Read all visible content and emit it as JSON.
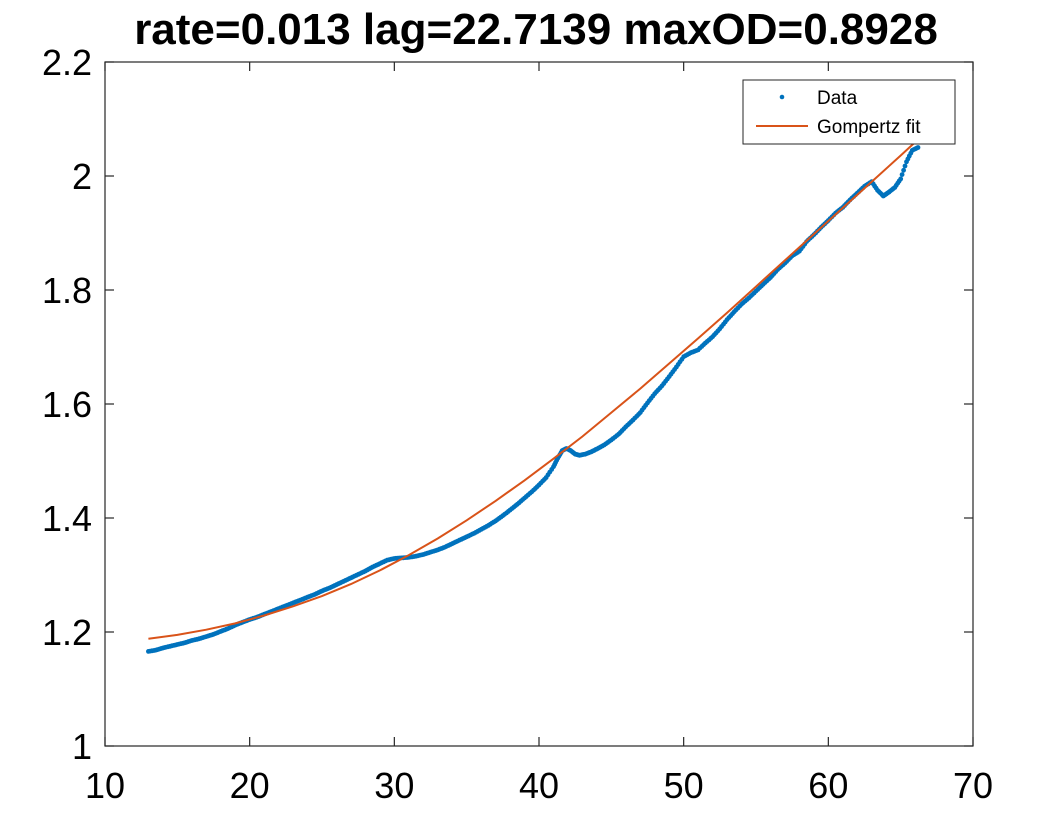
{
  "chart_data": {
    "type": "scatter",
    "title": "rate=0.013 lag=22.7139 maxOD=0.8928",
    "xlabel": "",
    "ylabel": "",
    "xlim": [
      10,
      70
    ],
    "ylim": [
      1,
      2.2
    ],
    "x_ticks": [
      "10",
      "20",
      "30",
      "40",
      "50",
      "60",
      "70"
    ],
    "y_ticks": [
      "1",
      "1.2",
      "1.4",
      "1.6",
      "1.8",
      "2",
      "2.2"
    ],
    "legend": {
      "placement": "top-right"
    },
    "grid": false,
    "series": [
      {
        "name": "Data",
        "kind": "scatter",
        "color": "#0072BD",
        "points": [
          [
            13.0,
            1.166
          ],
          [
            13.5,
            1.168
          ],
          [
            14.0,
            1.172
          ],
          [
            14.5,
            1.175
          ],
          [
            15.0,
            1.178
          ],
          [
            15.5,
            1.181
          ],
          [
            16.0,
            1.185
          ],
          [
            16.5,
            1.188
          ],
          [
            17.0,
            1.192
          ],
          [
            17.5,
            1.196
          ],
          [
            18.0,
            1.201
          ],
          [
            18.5,
            1.206
          ],
          [
            19.0,
            1.212
          ],
          [
            19.5,
            1.217
          ],
          [
            20.0,
            1.222
          ],
          [
            20.5,
            1.226
          ],
          [
            21.0,
            1.231
          ],
          [
            21.5,
            1.236
          ],
          [
            22.0,
            1.241
          ],
          [
            22.5,
            1.246
          ],
          [
            23.0,
            1.251
          ],
          [
            23.5,
            1.256
          ],
          [
            24.0,
            1.261
          ],
          [
            24.5,
            1.266
          ],
          [
            25.0,
            1.272
          ],
          [
            25.5,
            1.277
          ],
          [
            26.0,
            1.283
          ],
          [
            26.5,
            1.289
          ],
          [
            27.0,
            1.295
          ],
          [
            27.5,
            1.301
          ],
          [
            28.0,
            1.307
          ],
          [
            28.5,
            1.314
          ],
          [
            29.0,
            1.32
          ],
          [
            29.5,
            1.326
          ],
          [
            30.0,
            1.329
          ],
          [
            30.5,
            1.33
          ],
          [
            31.0,
            1.331
          ],
          [
            31.5,
            1.333
          ],
          [
            32.0,
            1.336
          ],
          [
            32.5,
            1.34
          ],
          [
            33.0,
            1.344
          ],
          [
            33.5,
            1.349
          ],
          [
            34.0,
            1.355
          ],
          [
            34.5,
            1.361
          ],
          [
            35.0,
            1.367
          ],
          [
            35.5,
            1.373
          ],
          [
            36.0,
            1.38
          ],
          [
            36.5,
            1.387
          ],
          [
            37.0,
            1.395
          ],
          [
            37.5,
            1.404
          ],
          [
            38.0,
            1.414
          ],
          [
            38.5,
            1.424
          ],
          [
            39.0,
            1.435
          ],
          [
            39.5,
            1.446
          ],
          [
            40.0,
            1.458
          ],
          [
            40.5,
            1.471
          ],
          [
            41.0,
            1.49
          ],
          [
            41.3,
            1.505
          ],
          [
            41.6,
            1.518
          ],
          [
            41.9,
            1.522
          ],
          [
            42.2,
            1.518
          ],
          [
            42.5,
            1.512
          ],
          [
            42.8,
            1.51
          ],
          [
            43.2,
            1.512
          ],
          [
            43.6,
            1.516
          ],
          [
            44.0,
            1.521
          ],
          [
            44.5,
            1.528
          ],
          [
            45.0,
            1.537
          ],
          [
            45.5,
            1.547
          ],
          [
            46.0,
            1.56
          ],
          [
            46.5,
            1.572
          ],
          [
            47.0,
            1.585
          ],
          [
            47.5,
            1.602
          ],
          [
            48.0,
            1.618
          ],
          [
            48.5,
            1.632
          ],
          [
            49.0,
            1.648
          ],
          [
            49.5,
            1.665
          ],
          [
            50.0,
            1.683
          ],
          [
            50.5,
            1.69
          ],
          [
            51.0,
            1.695
          ],
          [
            51.5,
            1.707
          ],
          [
            52.0,
            1.718
          ],
          [
            52.5,
            1.732
          ],
          [
            53.0,
            1.748
          ],
          [
            53.5,
            1.762
          ],
          [
            54.0,
            1.775
          ],
          [
            54.5,
            1.786
          ],
          [
            55.0,
            1.798
          ],
          [
            55.5,
            1.81
          ],
          [
            56.0,
            1.822
          ],
          [
            56.5,
            1.836
          ],
          [
            57.0,
            1.847
          ],
          [
            57.5,
            1.86
          ],
          [
            58.0,
            1.868
          ],
          [
            58.5,
            1.885
          ],
          [
            59.0,
            1.897
          ],
          [
            59.5,
            1.91
          ],
          [
            60.0,
            1.922
          ],
          [
            60.5,
            1.935
          ],
          [
            61.0,
            1.945
          ],
          [
            61.5,
            1.958
          ],
          [
            62.0,
            1.97
          ],
          [
            62.5,
            1.982
          ],
          [
            63.0,
            1.99
          ],
          [
            63.4,
            1.975
          ],
          [
            63.8,
            1.965
          ],
          [
            64.2,
            1.972
          ],
          [
            64.6,
            1.98
          ],
          [
            65.0,
            1.995
          ],
          [
            65.4,
            2.025
          ],
          [
            65.8,
            2.045
          ],
          [
            66.2,
            2.05
          ]
        ]
      },
      {
        "name": "Gompertz fit",
        "kind": "line",
        "color": "#D95319",
        "points": [
          [
            13.0,
            1.188
          ],
          [
            15.0,
            1.195
          ],
          [
            17.0,
            1.204
          ],
          [
            19.0,
            1.215
          ],
          [
            21.0,
            1.229
          ],
          [
            23.0,
            1.245
          ],
          [
            25.0,
            1.263
          ],
          [
            27.0,
            1.284
          ],
          [
            29.0,
            1.308
          ],
          [
            31.0,
            1.335
          ],
          [
            33.0,
            1.364
          ],
          [
            35.0,
            1.396
          ],
          [
            37.0,
            1.43
          ],
          [
            39.0,
            1.466
          ],
          [
            41.0,
            1.504
          ],
          [
            43.0,
            1.543
          ],
          [
            45.0,
            1.585
          ],
          [
            47.0,
            1.627
          ],
          [
            49.0,
            1.671
          ],
          [
            51.0,
            1.715
          ],
          [
            53.0,
            1.76
          ],
          [
            55.0,
            1.806
          ],
          [
            57.0,
            1.852
          ],
          [
            59.0,
            1.898
          ],
          [
            61.0,
            1.944
          ],
          [
            63.0,
            1.99
          ],
          [
            65.0,
            2.036
          ],
          [
            66.8,
            2.078
          ]
        ]
      }
    ]
  }
}
